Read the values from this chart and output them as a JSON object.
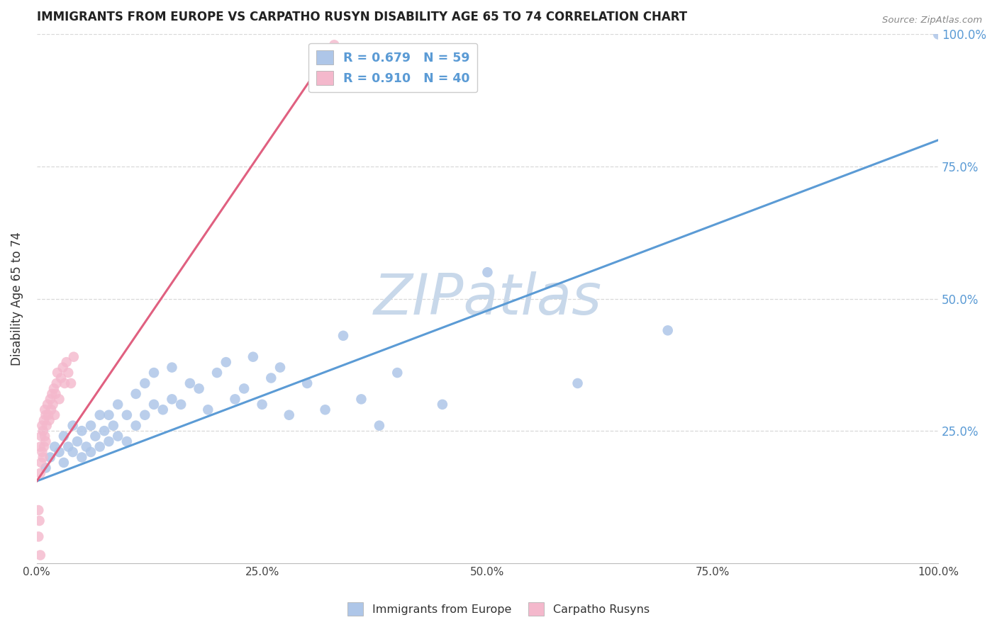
{
  "title": "IMMIGRANTS FROM EUROPE VS CARPATHO RUSYN DISABILITY AGE 65 TO 74 CORRELATION CHART",
  "source": "Source: ZipAtlas.com",
  "ylabel": "Disability Age 65 to 74",
  "xlim": [
    0,
    1.0
  ],
  "ylim": [
    0,
    1.0
  ],
  "xtick_labels": [
    "0.0%",
    "",
    "",
    "",
    "25.0%",
    "",
    "",
    "",
    "50.0%",
    "",
    "",
    "",
    "75.0%",
    "",
    "",
    "",
    "100.0%"
  ],
  "xtick_vals": [
    0,
    0.0625,
    0.125,
    0.1875,
    0.25,
    0.3125,
    0.375,
    0.4375,
    0.5,
    0.5625,
    0.625,
    0.6875,
    0.75,
    0.8125,
    0.875,
    0.9375,
    1.0
  ],
  "ytick_vals": [
    0.25,
    0.5,
    0.75,
    1.0
  ],
  "right_ytick_labels": [
    "25.0%",
    "50.0%",
    "75.0%",
    "100.0%"
  ],
  "legend_entry_blue": "R = 0.679   N = 59",
  "legend_entry_pink": "R = 0.910   N = 40",
  "blue_scatter_x": [
    0.01,
    0.015,
    0.02,
    0.025,
    0.03,
    0.03,
    0.035,
    0.04,
    0.04,
    0.045,
    0.05,
    0.05,
    0.055,
    0.06,
    0.06,
    0.065,
    0.07,
    0.07,
    0.075,
    0.08,
    0.08,
    0.085,
    0.09,
    0.09,
    0.1,
    0.1,
    0.11,
    0.11,
    0.12,
    0.12,
    0.13,
    0.13,
    0.14,
    0.15,
    0.15,
    0.16,
    0.17,
    0.18,
    0.19,
    0.2,
    0.21,
    0.22,
    0.23,
    0.24,
    0.25,
    0.26,
    0.27,
    0.28,
    0.3,
    0.32,
    0.34,
    0.36,
    0.38,
    0.4,
    0.45,
    0.5,
    0.6,
    0.7,
    1.0
  ],
  "blue_scatter_y": [
    0.18,
    0.2,
    0.22,
    0.21,
    0.19,
    0.24,
    0.22,
    0.21,
    0.26,
    0.23,
    0.2,
    0.25,
    0.22,
    0.21,
    0.26,
    0.24,
    0.22,
    0.28,
    0.25,
    0.23,
    0.28,
    0.26,
    0.24,
    0.3,
    0.23,
    0.28,
    0.26,
    0.32,
    0.28,
    0.34,
    0.3,
    0.36,
    0.29,
    0.31,
    0.37,
    0.3,
    0.34,
    0.33,
    0.29,
    0.36,
    0.38,
    0.31,
    0.33,
    0.39,
    0.3,
    0.35,
    0.37,
    0.28,
    0.34,
    0.29,
    0.43,
    0.31,
    0.26,
    0.36,
    0.3,
    0.55,
    0.34,
    0.44,
    1.0
  ],
  "pink_scatter_x": [
    0.002,
    0.002,
    0.003,
    0.004,
    0.004,
    0.005,
    0.005,
    0.006,
    0.006,
    0.007,
    0.007,
    0.008,
    0.008,
    0.009,
    0.009,
    0.01,
    0.01,
    0.011,
    0.012,
    0.013,
    0.014,
    0.015,
    0.016,
    0.017,
    0.018,
    0.019,
    0.02,
    0.021,
    0.022,
    0.023,
    0.025,
    0.027,
    0.029,
    0.031,
    0.033,
    0.035,
    0.038,
    0.041,
    0.004,
    0.33
  ],
  "pink_scatter_y": [
    0.05,
    0.1,
    0.08,
    0.17,
    0.22,
    0.19,
    0.24,
    0.21,
    0.26,
    0.2,
    0.25,
    0.22,
    0.27,
    0.24,
    0.29,
    0.23,
    0.28,
    0.26,
    0.3,
    0.28,
    0.27,
    0.31,
    0.29,
    0.32,
    0.3,
    0.33,
    0.28,
    0.32,
    0.34,
    0.36,
    0.31,
    0.35,
    0.37,
    0.34,
    0.38,
    0.36,
    0.34,
    0.39,
    0.015,
    0.98
  ],
  "blue_line_x": [
    0.0,
    1.0
  ],
  "blue_line_y": [
    0.155,
    0.8
  ],
  "pink_line_x": [
    0.0,
    0.33
  ],
  "pink_line_y": [
    0.155,
    0.98
  ],
  "blue_color": "#5b9bd5",
  "pink_color": "#e06080",
  "blue_scatter_color": "#aec6e8",
  "pink_scatter_color": "#f4b8cc",
  "watermark": "ZIPatlas",
  "watermark_color": "#c8d8ea",
  "background_color": "#ffffff",
  "grid_color": "#d8d8d8"
}
